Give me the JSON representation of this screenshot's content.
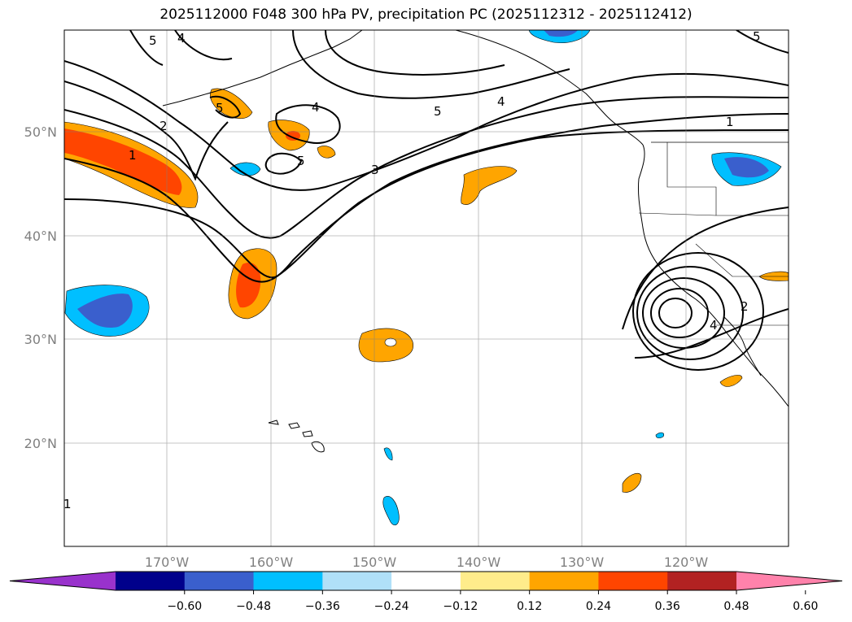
{
  "title": "2025112000 F048 300 hPa PV, precipitation PC (2025112312 - 2025112412)",
  "lat_labels": [
    "50°N",
    "40°N",
    "30°N",
    "20°N"
  ],
  "lon_labels": [
    "170°W",
    "160°W",
    "150°W",
    "140°W",
    "130°W",
    "120°W"
  ],
  "colorbar": {
    "tick_labels": [
      "−0.60",
      "−0.48",
      "−0.36",
      "−0.24",
      "−0.12",
      "0.12",
      "0.24",
      "0.36",
      "0.48",
      "0.60"
    ],
    "colors": [
      "#9932cc",
      "#00008b",
      "#3a5fcd",
      "#00bfff",
      "#b0e0f8",
      "#ffffff",
      "#ffec8b",
      "#ffa500",
      "#ff4500",
      "#b22222",
      "#ff82ab"
    ]
  },
  "contour_labels": [
    "5",
    "4",
    "5",
    "2",
    "1",
    "4",
    "5",
    "3",
    "5",
    "4",
    "1",
    "5",
    "2",
    "4",
    "1"
  ]
}
